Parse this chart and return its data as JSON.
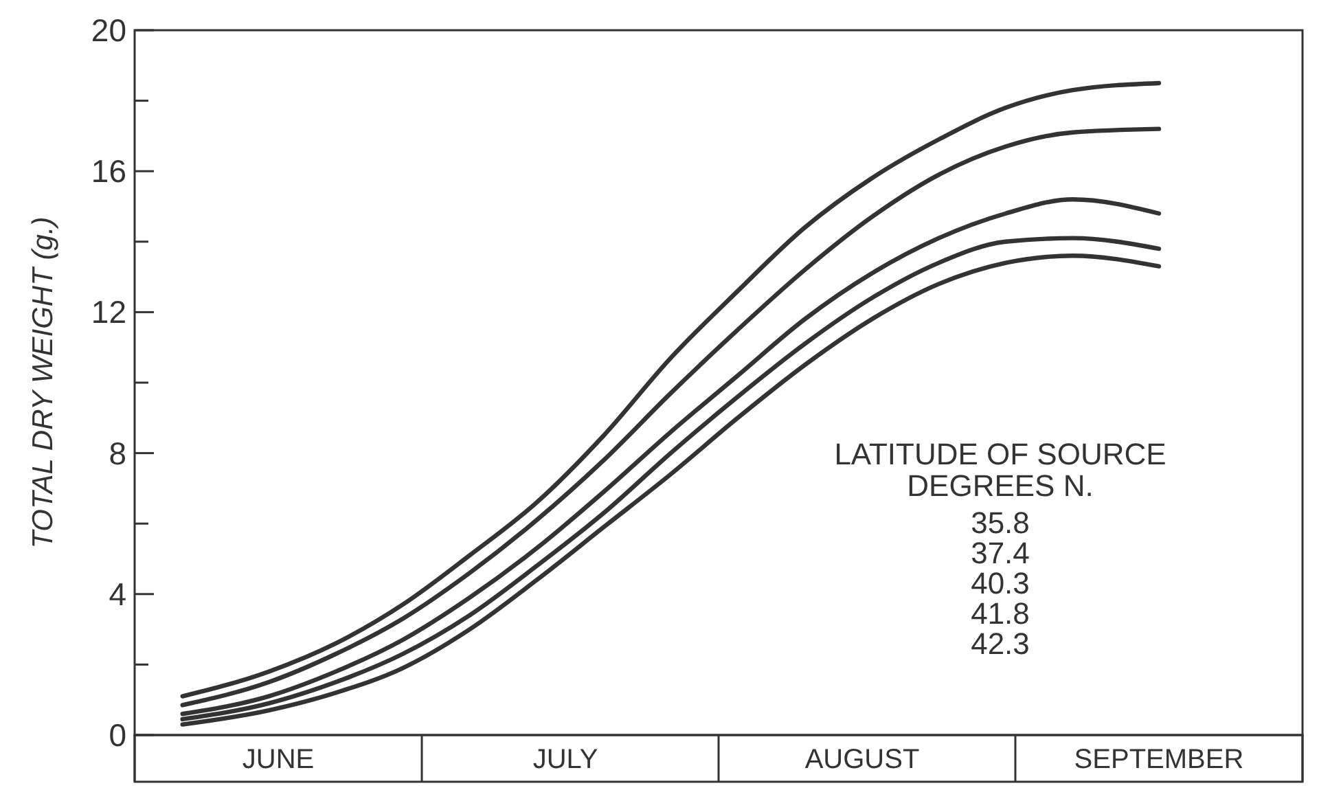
{
  "chart_data": {
    "type": "line",
    "ylabel": "TOTAL DRY WEIGHT (g.)",
    "legend_title": "LATITUDE OF SOURCE\nDEGREES N.",
    "annotations": [
      "35.8",
      "37.4",
      "40.3",
      "41.8",
      "42.3"
    ],
    "grid": false,
    "marker": "none",
    "line_style": "solid",
    "x": [
      "--06-06",
      "--06-15",
      "--06-22",
      "--06-29",
      "--07-06",
      "--07-13",
      "--07-20",
      "--07-27",
      "--08-03",
      "--08-10",
      "--08-17",
      "--08-24",
      "--08-31",
      "--09-07",
      "--09-16"
    ],
    "xlim": [
      "--06-01",
      "--10-01"
    ],
    "xticks": [
      {
        "value": "--06-01",
        "label": null
      },
      {
        "value": "--06-16",
        "label": "JUNE"
      },
      {
        "value": "--07-01",
        "label": null
      },
      {
        "value": "--07-16",
        "label": "JULY"
      },
      {
        "value": "--08-01",
        "label": null
      },
      {
        "value": "--08-16",
        "label": "AUGUST"
      },
      {
        "value": "--09-01",
        "label": null
      },
      {
        "value": "--09-16",
        "label": "SEPTEMBER"
      },
      {
        "value": "--10-01",
        "label": null
      }
    ],
    "ylim": [
      0,
      20
    ],
    "yticks": [
      0,
      {
        "value": 2,
        "label": null
      },
      4,
      {
        "value": 6,
        "label": null
      },
      8,
      {
        "value": 10,
        "label": null
      },
      12,
      {
        "value": 14,
        "label": null
      },
      16,
      {
        "value": 18,
        "label": null
      },
      20
    ],
    "series": [
      {
        "color": "#333333",
        "values": [
          1.1,
          1.8,
          2.6,
          3.7,
          5.1,
          6.6,
          8.5,
          10.7,
          12.6,
          14.4,
          15.8,
          16.9,
          17.8,
          18.3,
          18.5
        ]
      },
      {
        "color": "#333333",
        "values": [
          0.85,
          1.5,
          2.3,
          3.3,
          4.6,
          6.1,
          7.8,
          9.7,
          11.5,
          13.2,
          14.7,
          15.9,
          16.7,
          17.1,
          17.2
        ]
      },
      {
        "color": "#333333",
        "values": [
          0.6,
          1.1,
          1.8,
          2.7,
          3.9,
          5.3,
          6.9,
          8.6,
          10.2,
          11.8,
          13.1,
          14.1,
          14.8,
          15.2,
          14.8
        ]
      },
      {
        "color": "#333333",
        "values": [
          0.45,
          0.9,
          1.5,
          2.3,
          3.4,
          4.8,
          6.3,
          8.0,
          9.6,
          11.1,
          12.4,
          13.4,
          14.0,
          14.1,
          13.8
        ]
      },
      {
        "color": "#333333",
        "values": [
          0.3,
          0.7,
          1.2,
          1.9,
          3.0,
          4.4,
          5.9,
          7.4,
          9.0,
          10.5,
          11.8,
          12.8,
          13.4,
          13.6,
          13.3
        ]
      }
    ]
  }
}
